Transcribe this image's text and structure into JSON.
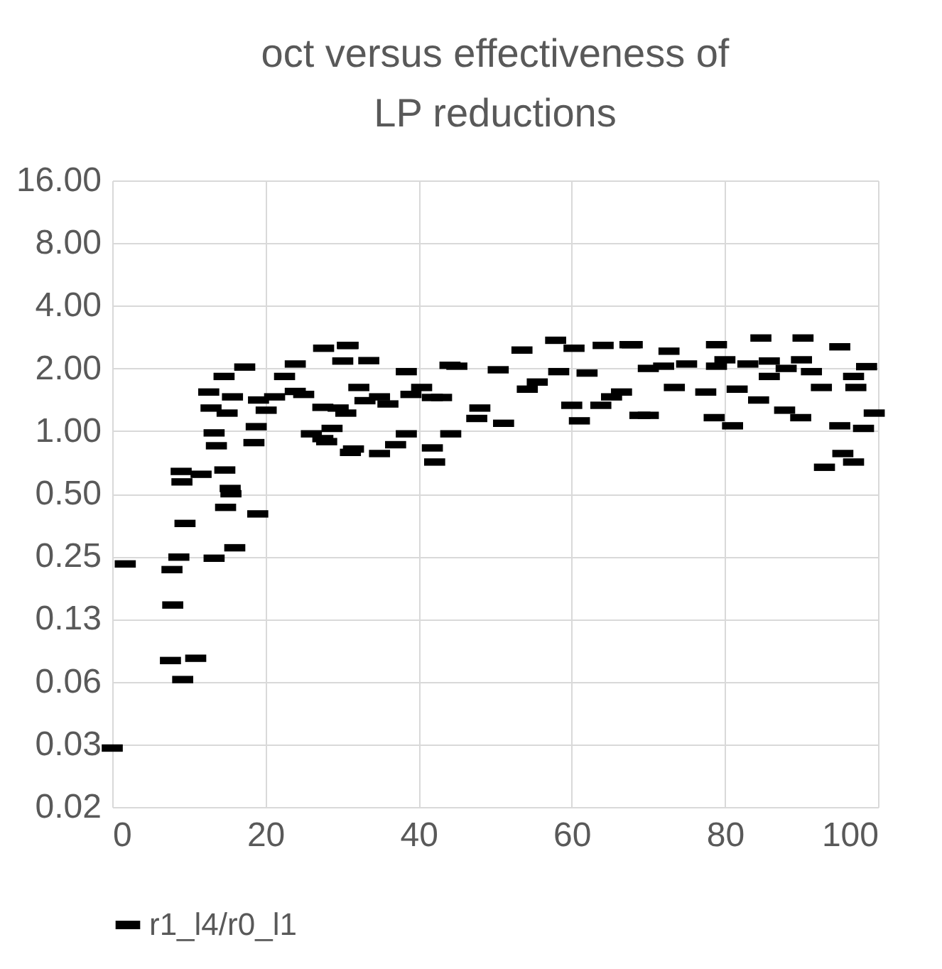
{
  "chart_data": {
    "type": "scatter",
    "title": "oct versus effectiveness of LP reductions",
    "series": [
      {
        "name": "r1_l4/r0_l1",
        "color": "#000000",
        "x": [
          0,
          1.7,
          7.8,
          8.7,
          7.9,
          7.6,
          10.9,
          9.2,
          9.5,
          9.0,
          9.1,
          11.6,
          14.7,
          15.4,
          15.5,
          14.8,
          19.0,
          13.3,
          16.0,
          13.3,
          13.6,
          18.5,
          12.6,
          12.9,
          14.6,
          17.3,
          15,
          15.7,
          18.8,
          20.1,
          19.1,
          21.2,
          23.9,
          27.6,
          30.7,
          22.5,
          26,
          28,
          31.1,
          30.5,
          27.5,
          23.9,
          30.8,
          30.1,
          33.5,
          38.4,
          44.1,
          45,
          50.4,
          53.5,
          57.9,
          60.3,
          64.1,
          67.6,
          31.5,
          34.9,
          41.8,
          42.1,
          44.2,
          38.4,
          37,
          51.1,
          48,
          47.6,
          61,
          60,
          68.9,
          63.8,
          55.5,
          54.2,
          58.3,
          41.8,
          34.9,
          29.5,
          32.2,
          40.4,
          28.7,
          27.5,
          67.9,
          72.7,
          78.9,
          84.7,
          90.2,
          95,
          98.5,
          96.8,
          97.1,
          99.5,
          98.1,
          95,
          95.4,
          96.8,
          93,
          81,
          78.6,
          70,
          84.4,
          87.8,
          89.9,
          77.5,
          81.6,
          73.4,
          66.5,
          65.2,
          72,
          78.9,
          85.8,
          91.3,
          85.8,
          92.6,
          25,
          33,
          36,
          39,
          43,
          62,
          70,
          75,
          80,
          83,
          88,
          90
        ],
        "values": [
          0.03,
          0.23,
          0.216,
          0.248,
          0.146,
          0.079,
          0.081,
          0.064,
          0.36,
          0.64,
          0.57,
          0.62,
          0.65,
          0.53,
          0.5,
          0.43,
          0.4,
          0.245,
          0.275,
          0.98,
          0.85,
          0.88,
          1.54,
          1.29,
          1.83,
          2.03,
          1.22,
          1.46,
          1.05,
          1.26,
          1.41,
          1.46,
          2.1,
          2.5,
          2.58,
          1.83,
          0.97,
          0.89,
          0.79,
          1.22,
          1.3,
          1.55,
          2.58,
          2.17,
          2.18,
          1.93,
          2.07,
          2.05,
          1.97,
          2.45,
          2.73,
          2.5,
          2.58,
          2.6,
          0.82,
          0.78,
          0.83,
          0.71,
          0.97,
          0.97,
          0.86,
          1.09,
          1.29,
          1.15,
          1.12,
          1.33,
          1.19,
          1.33,
          1.72,
          1.59,
          1.93,
          1.45,
          1.46,
          1.29,
          1.62,
          1.62,
          1.03,
          0.92,
          2.6,
          2.42,
          2.6,
          2.8,
          2.8,
          2.54,
          2.04,
          1.83,
          1.62,
          1.22,
          1.03,
          1.06,
          0.78,
          0.71,
          0.67,
          1.06,
          1.16,
          1.19,
          1.41,
          1.26,
          1.16,
          1.54,
          1.59,
          1.62,
          1.54,
          1.46,
          2.05,
          2.05,
          2.17,
          1.93,
          1.83,
          1.62,
          1.5,
          1.4,
          1.35,
          1.5,
          1.45,
          1.9,
          2.0,
          2.1,
          2.2,
          2.1,
          2.0,
          2.2
        ]
      }
    ],
    "xlim": [
      0,
      100
    ],
    "xticks": [
      0,
      20,
      40,
      60,
      80,
      100
    ],
    "ylim": [
      0.015625,
      16
    ],
    "log": "y",
    "yticks": [
      {
        "value": 0.015625,
        "label": "0.02"
      },
      {
        "value": 0.03125,
        "label": "0.03"
      },
      {
        "value": 0.0625,
        "label": "0.06"
      },
      {
        "value": 0.125,
        "label": "0.13"
      },
      {
        "value": 0.25,
        "label": "0.25"
      },
      {
        "value": 0.5,
        "label": "0.50"
      },
      {
        "value": 1,
        "label": "1.00"
      },
      {
        "value": 2,
        "label": "2.00"
      },
      {
        "value": 4,
        "label": "4.00"
      },
      {
        "value": 8,
        "label": "8.00"
      },
      {
        "value": 16,
        "label": "16.00"
      }
    ],
    "grid": true,
    "legend": "bottom"
  }
}
